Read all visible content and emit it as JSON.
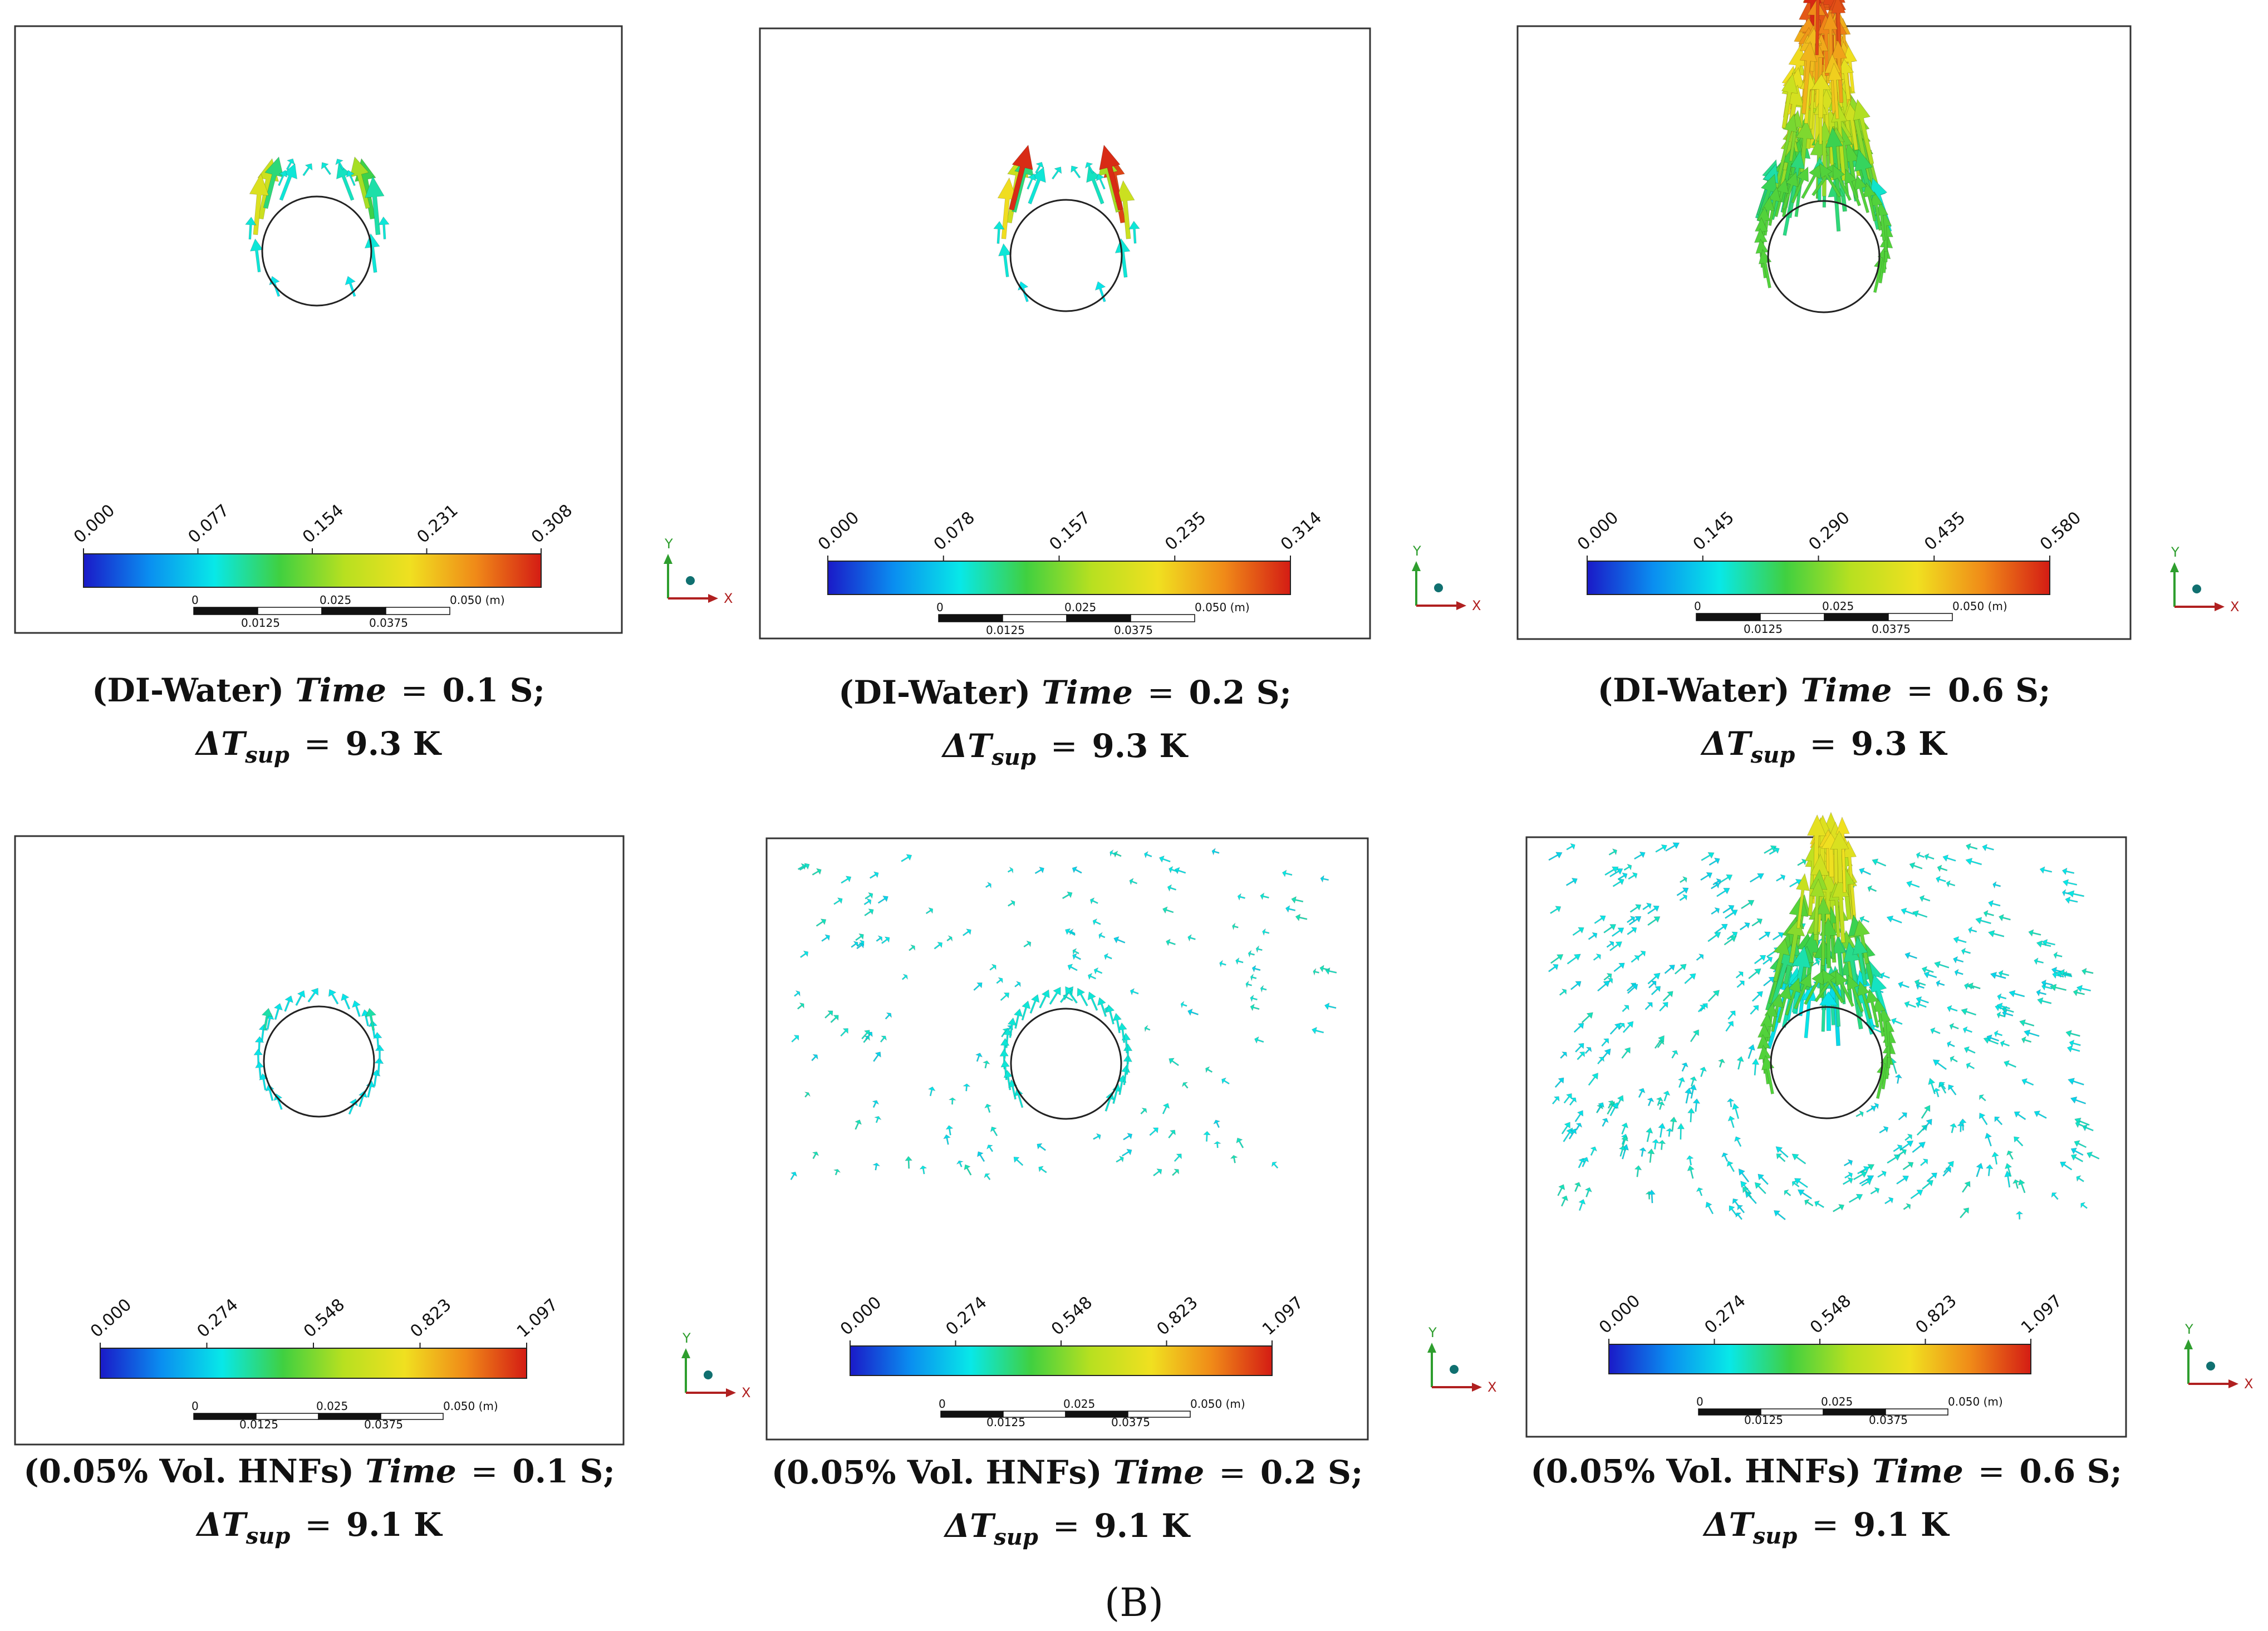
{
  "figure_label": "(B)",
  "colors": {
    "colormap": [
      "#1a1ac8",
      "#0a8ef0",
      "#08e8e8",
      "#40d040",
      "#b8e020",
      "#f0e020",
      "#f08a18",
      "#d41c14"
    ],
    "circle": "#222222",
    "axis_y": "#2e9e2e",
    "axis_x": "#b02020"
  },
  "axis_triad": {
    "y_label": "Y",
    "x_label": "X"
  },
  "scale_bar": {
    "labels_top": [
      "0",
      "0.025",
      "0.050 (m)"
    ],
    "labels_bottom": [
      "0.0125",
      "0.0375"
    ]
  },
  "panels": [
    {
      "id": "di-water-t0.1",
      "fluid": "(DI-Water)",
      "time_label": "Time",
      "time_value": "0.1 S;",
      "delta_label": "ΔT",
      "delta_sub": "sup",
      "delta_value": "9.3 K",
      "colorbar_ticks": [
        "0.000",
        "0.077",
        "0.154",
        "0.231",
        "0.308"
      ],
      "arrow_field": "sparse_ring",
      "vmax": 0.308
    },
    {
      "id": "di-water-t0.2",
      "fluid": "(DI-Water)",
      "time_label": "Time",
      "time_value": "0.2 S;",
      "delta_label": "ΔT",
      "delta_sub": "sup",
      "delta_value": "9.3 K",
      "colorbar_ticks": [
        "0.000",
        "0.078",
        "0.157",
        "0.235",
        "0.314"
      ],
      "arrow_field": "sparse_ring",
      "vmax": 0.314
    },
    {
      "id": "di-water-t0.6",
      "fluid": "(DI-Water)",
      "time_label": "Time",
      "time_value": "0.6 S;",
      "delta_label": "ΔT",
      "delta_sub": "sup",
      "delta_value": "9.3 K",
      "colorbar_ticks": [
        "0.000",
        "0.145",
        "0.290",
        "0.435",
        "0.580"
      ],
      "arrow_field": "plume",
      "vmax": 0.58
    },
    {
      "id": "hnfs-t0.1",
      "fluid": "(0.05% Vol. HNFs)",
      "time_label": "Time",
      "time_value": "0.1 S;",
      "delta_label": "ΔT",
      "delta_sub": "sup",
      "delta_value": "9.1 K",
      "colorbar_ticks": [
        "0.000",
        "0.274",
        "0.548",
        "0.823",
        "1.097"
      ],
      "arrow_field": "faint_ring",
      "vmax": 1.097
    },
    {
      "id": "hnfs-t0.2",
      "fluid": "(0.05% Vol. HNFs)",
      "time_label": "Time",
      "time_value": "0.2 S;",
      "delta_label": "ΔT",
      "delta_sub": "sup",
      "delta_value": "9.1 K",
      "colorbar_ticks": [
        "0.000",
        "0.274",
        "0.548",
        "0.823",
        "1.097"
      ],
      "arrow_field": "scattered_small",
      "vmax": 1.097
    },
    {
      "id": "hnfs-t0.6",
      "fluid": "(0.05% Vol. HNFs)",
      "time_label": "Time",
      "time_value": "0.6 S;",
      "delta_label": "ΔT",
      "delta_sub": "sup",
      "delta_value": "9.1 K",
      "colorbar_ticks": [
        "0.000",
        "0.274",
        "0.548",
        "0.823",
        "1.097"
      ],
      "arrow_field": "plume_field",
      "vmax": 1.097
    }
  ]
}
